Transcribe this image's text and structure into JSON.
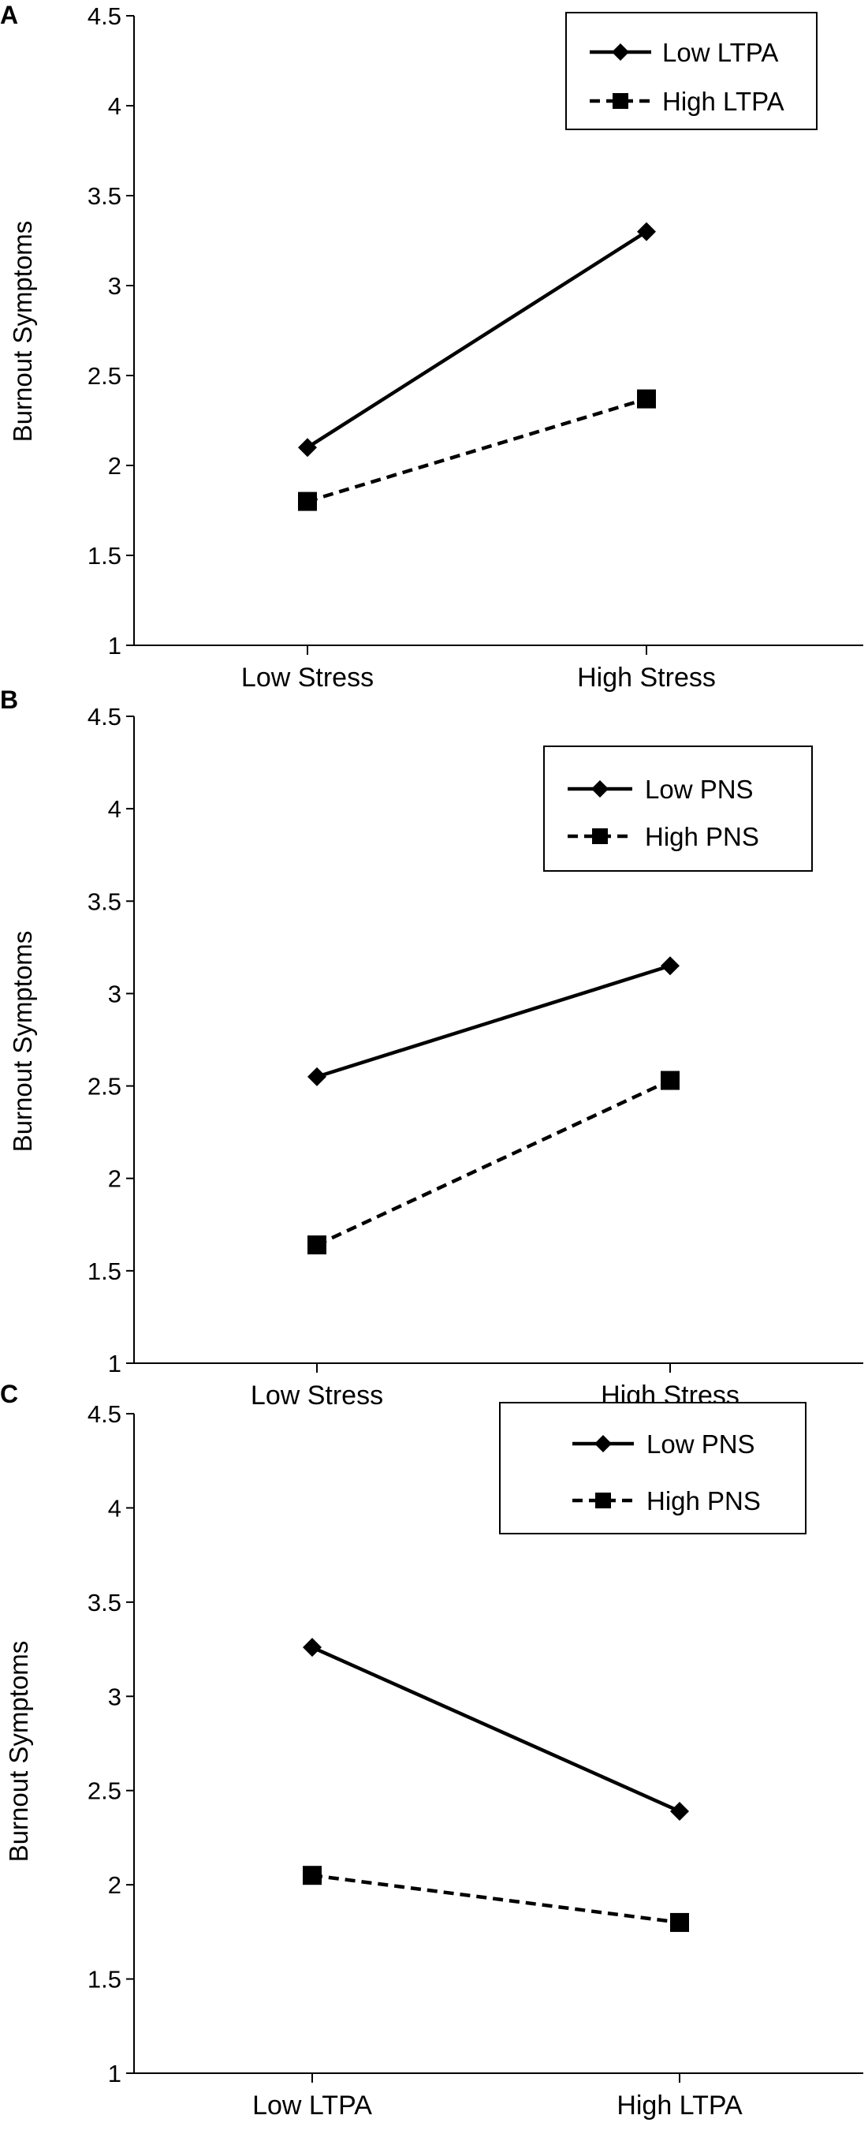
{
  "chart_data": [
    {
      "type": "line",
      "panel": "A",
      "title": "",
      "xlabel": "",
      "ylabel": "Burnout Symptoms",
      "ylim": [
        1,
        4.5
      ],
      "yticks": [
        "1",
        "1.5",
        "2",
        "2.5",
        "3",
        "3.5",
        "4",
        "4.5"
      ],
      "categories": [
        "Low Stress",
        "High Stress"
      ],
      "legend_position": "top-right",
      "series": [
        {
          "name": "Low LTPA",
          "marker": "diamond",
          "line": "solid",
          "values": [
            2.1,
            3.3
          ]
        },
        {
          "name": "High LTPA",
          "marker": "square",
          "line": "dashed",
          "values": [
            1.8,
            2.37
          ]
        }
      ]
    },
    {
      "type": "line",
      "panel": "B",
      "title": "",
      "xlabel": "",
      "ylabel": "Burnout Symptoms",
      "ylim": [
        1,
        4.5
      ],
      "yticks": [
        "1",
        "1.5",
        "2",
        "2.5",
        "3",
        "3.5",
        "4",
        "4.5"
      ],
      "categories": [
        "Low Stress",
        "High Stress"
      ],
      "legend_position": "top-right",
      "series": [
        {
          "name": "Low PNS",
          "marker": "diamond",
          "line": "solid",
          "values": [
            2.55,
            3.15
          ]
        },
        {
          "name": "High PNS",
          "marker": "square",
          "line": "dashed",
          "values": [
            1.64,
            2.53
          ]
        }
      ]
    },
    {
      "type": "line",
      "panel": "C",
      "title": "",
      "xlabel": "",
      "ylabel": "Burnout Symptoms",
      "ylim": [
        1,
        4.5
      ],
      "yticks": [
        "1",
        "1.5",
        "2",
        "2.5",
        "3",
        "3.5",
        "4",
        "4.5"
      ],
      "categories": [
        "Low LTPA",
        "High LTPA"
      ],
      "legend_position": "top-right",
      "series": [
        {
          "name": "Low PNS",
          "marker": "diamond",
          "line": "solid",
          "values": [
            3.26,
            2.39
          ]
        },
        {
          "name": "High PNS",
          "marker": "square",
          "line": "dashed",
          "values": [
            2.05,
            1.8
          ]
        }
      ]
    }
  ]
}
